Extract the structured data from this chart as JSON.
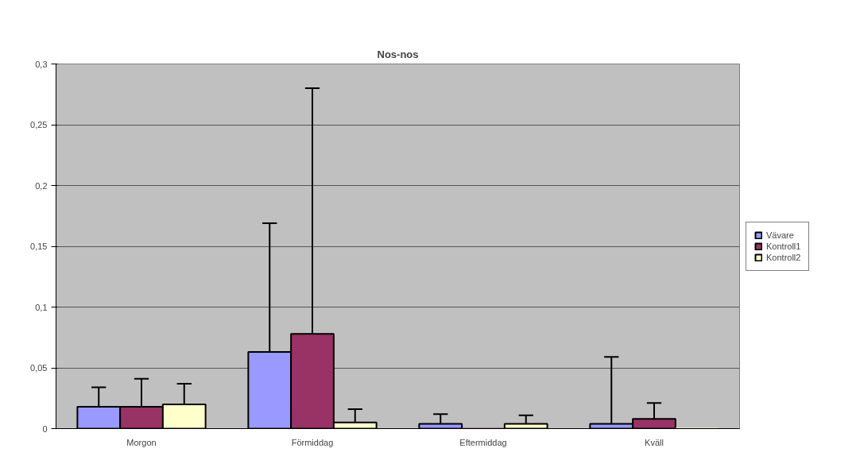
{
  "chart_data": {
    "type": "bar",
    "title": "Nos-nos",
    "categories": [
      "Morgon",
      "Förmiddag",
      "Eftermiddag",
      "Kväll"
    ],
    "series": [
      {
        "name": "Vävare",
        "color": "#9999ff",
        "values": [
          0.018,
          0.063,
          0.004,
          0.004
        ],
        "errors": [
          [
            0.018,
            0.034
          ],
          [
            0.063,
            0.169
          ],
          [
            0.004,
            0.012
          ],
          [
            0.004,
            0.059
          ]
        ]
      },
      {
        "name": "Kontroll1",
        "color": "#993366",
        "values": [
          0.018,
          0.078,
          0,
          0.008
        ],
        "errors": [
          [
            0.018,
            0.041
          ],
          [
            0.078,
            0.28
          ],
          null,
          [
            0.008,
            0.021
          ]
        ]
      },
      {
        "name": "Kontroll2",
        "color": "#ffffcc",
        "values": [
          0.02,
          0.005,
          0.004,
          0
        ],
        "errors": [
          [
            0.02,
            0.037
          ],
          [
            0.005,
            0.016
          ],
          [
            0.004,
            0.011
          ],
          null
        ]
      }
    ],
    "ylim": [
      0,
      0.3
    ],
    "yticks": [
      0,
      {
        "value": 0.05,
        "label": "0,05"
      },
      {
        "value": 0.1,
        "label": "0,1"
      },
      {
        "value": 0.15,
        "label": "0,15"
      },
      {
        "value": 0.2,
        "label": "0,2"
      },
      {
        "value": 0.25,
        "label": "0,25"
      },
      {
        "value": 0.3,
        "label": "0,3"
      }
    ],
    "grid": "y",
    "legend": "right"
  }
}
